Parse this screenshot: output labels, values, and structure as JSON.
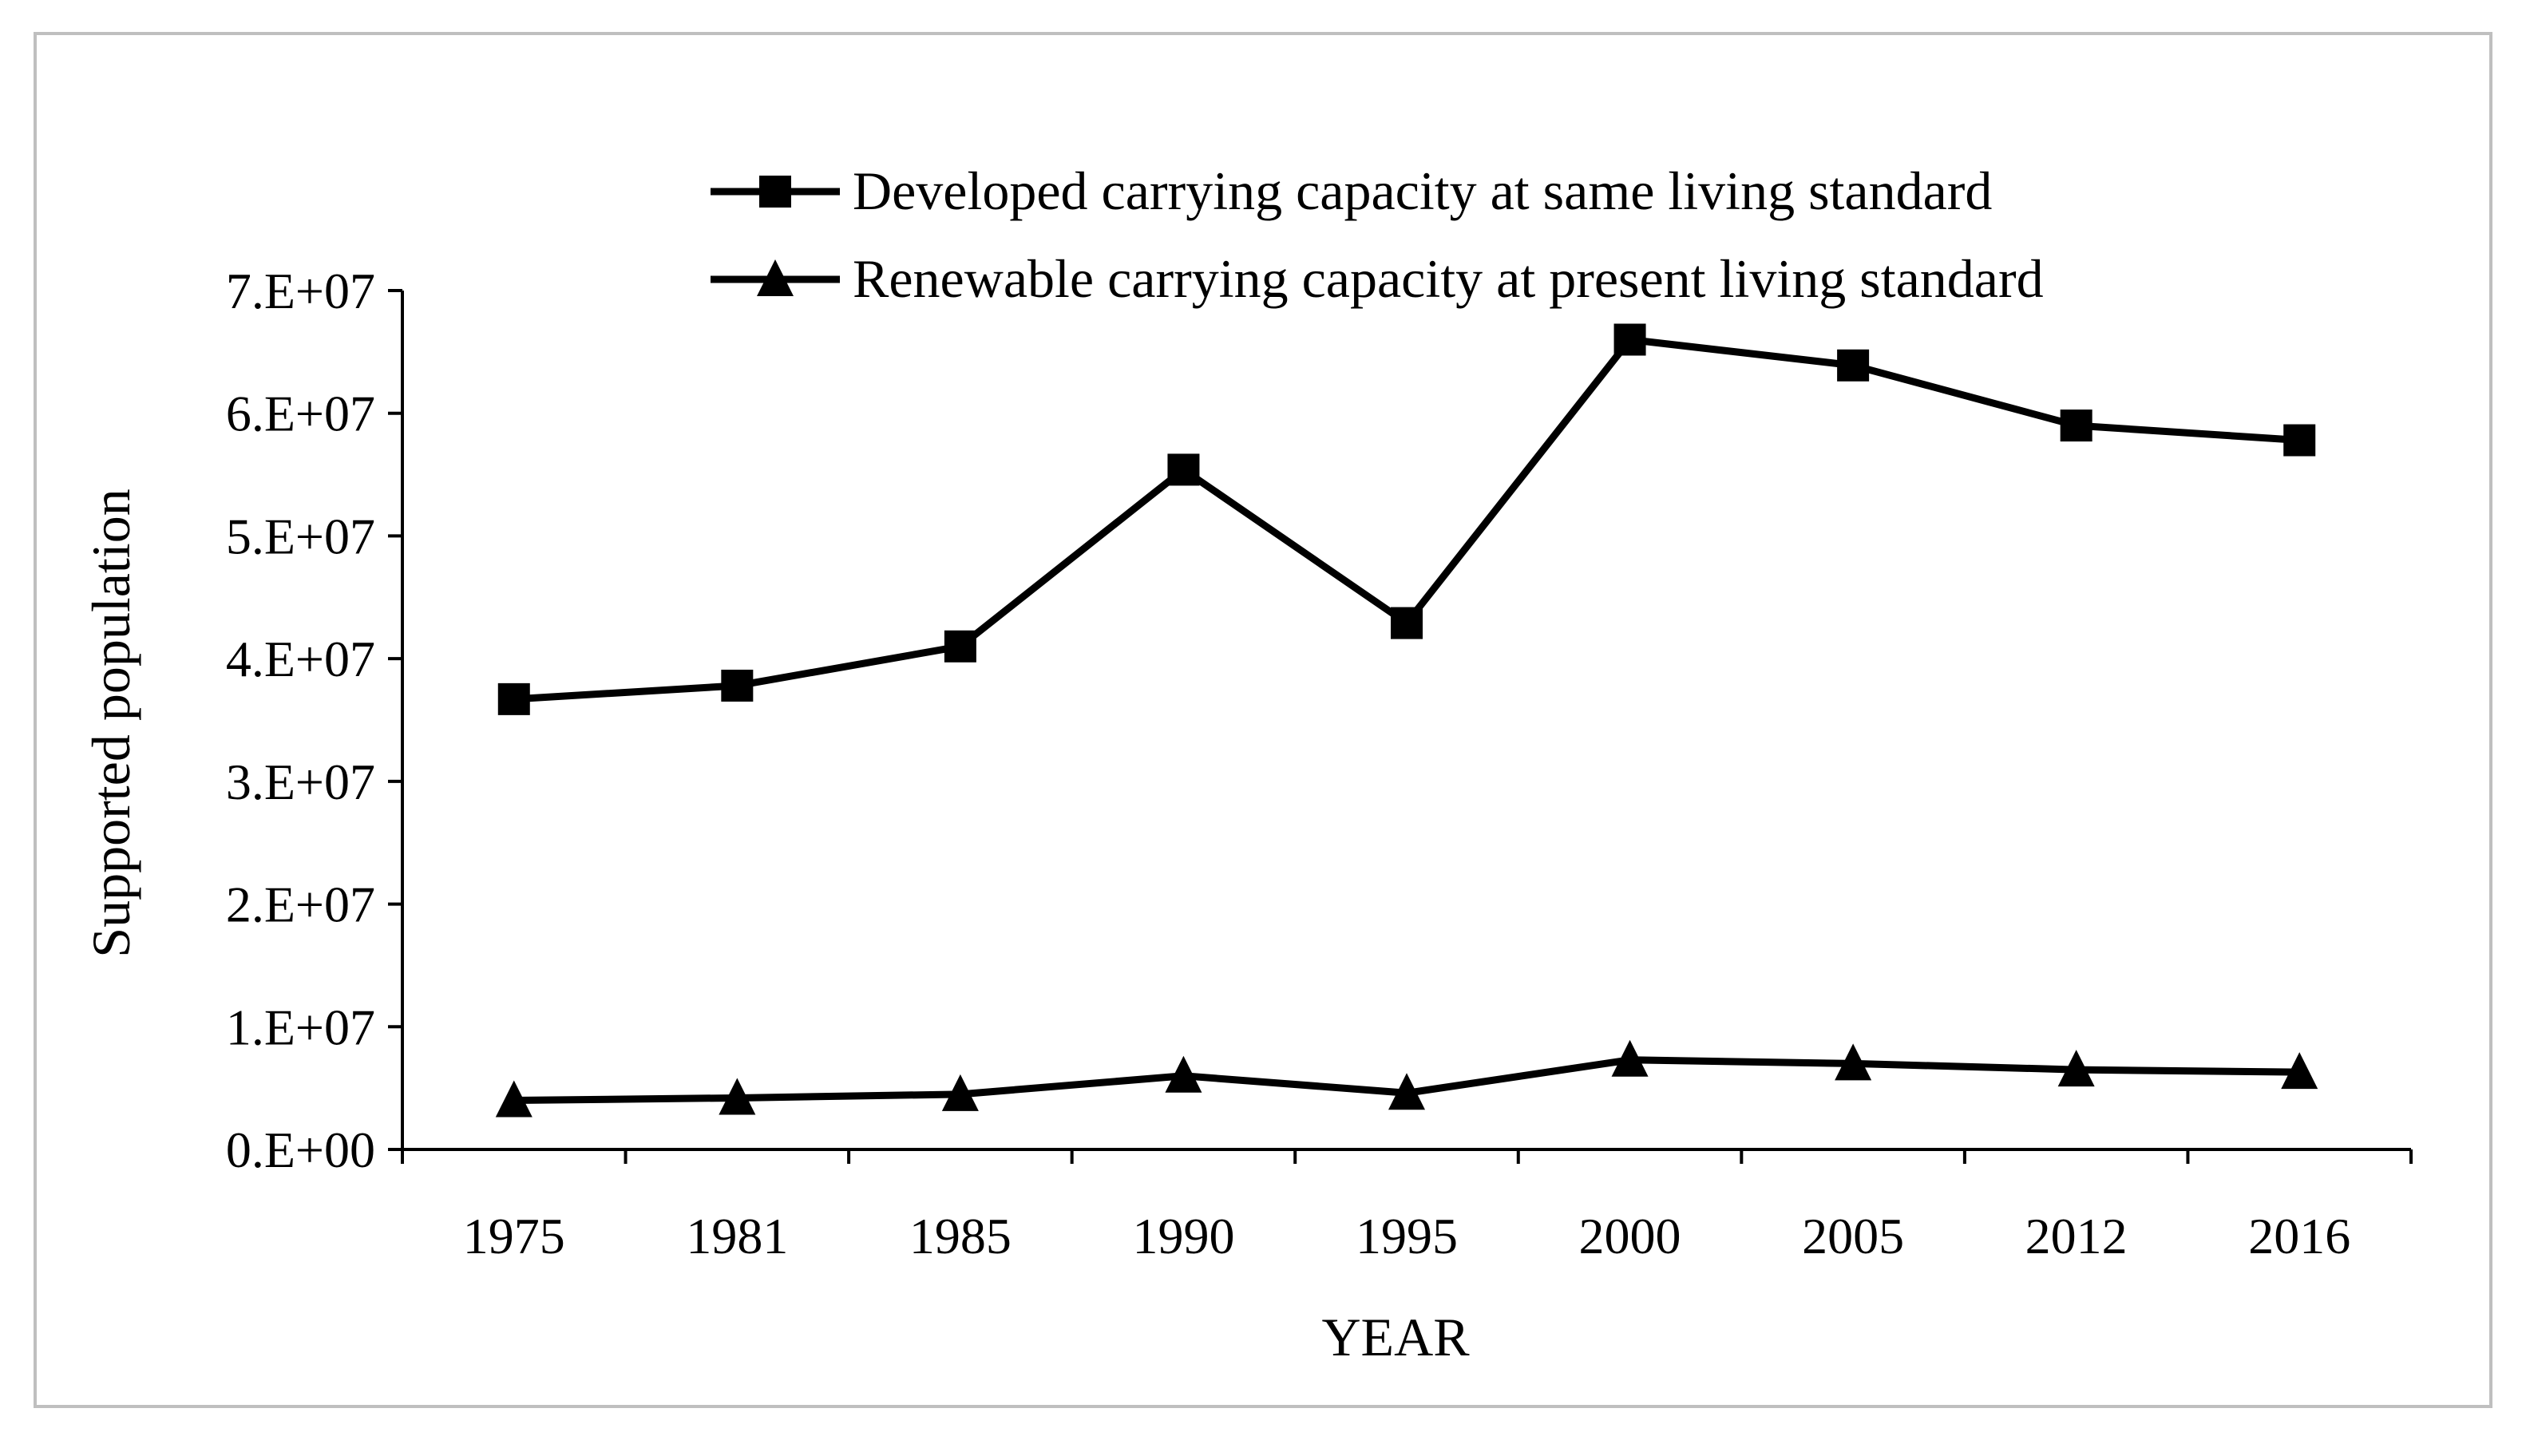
{
  "chart_data": {
    "type": "line",
    "title": "",
    "xlabel": "YEAR",
    "ylabel": "Supported population",
    "categories": [
      "1975",
      "1981",
      "1985",
      "1990",
      "1995",
      "2000",
      "2005",
      "2012",
      "2016"
    ],
    "ylim": [
      0,
      70000000
    ],
    "yticks": [
      0,
      10000000,
      20000000,
      30000000,
      40000000,
      50000000,
      60000000,
      70000000
    ],
    "ytick_labels": [
      "0.E+00",
      "1.E+07",
      "2.E+07",
      "3.E+07",
      "4.E+07",
      "5.E+07",
      "6.E+07",
      "7.E+07"
    ],
    "grid": false,
    "legend_position": "top-right",
    "series": [
      {
        "name": "Developed carrying capacity at same living standard",
        "marker": "square",
        "color": "#000000",
        "values": [
          36700000,
          37800000,
          41000000,
          55400000,
          42900000,
          66000000,
          63900000,
          59000000,
          57800000
        ]
      },
      {
        "name": "Renewable carrying capacity at present living standard",
        "marker": "triangle",
        "color": "#000000",
        "values": [
          4000000,
          4200000,
          4500000,
          6000000,
          4600000,
          7300000,
          7000000,
          6500000,
          6300000
        ]
      }
    ]
  }
}
